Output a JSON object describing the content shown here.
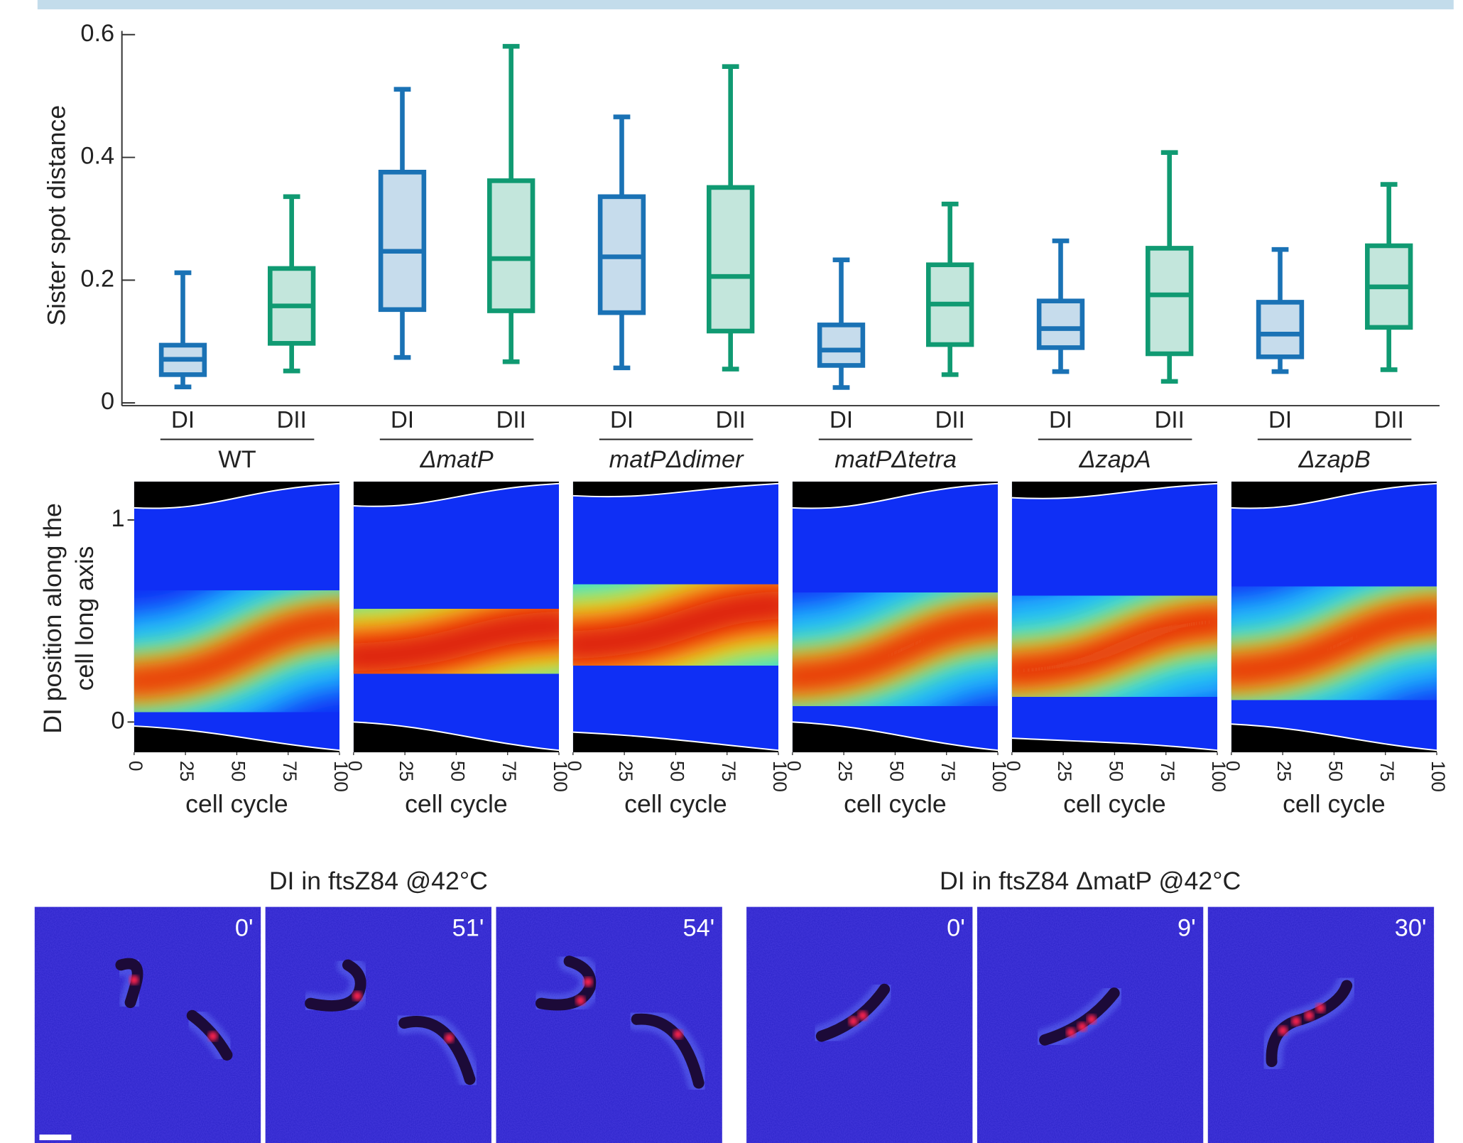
{
  "chart_data": [
    {
      "type": "box",
      "ylabel": "Sister spot distance",
      "categories": [
        "WT",
        "ΔmatP",
        "matPΔdimer",
        "matPΔtetra",
        "ΔzapA",
        "ΔzapB"
      ],
      "category_italic": [
        false,
        true,
        true,
        true,
        true,
        true
      ],
      "ylim": [
        0,
        0.6
      ],
      "yticks": [
        0,
        0.2,
        0.4,
        0.6
      ],
      "series": [
        {
          "name": "DI",
          "color": "#1a72b5",
          "min": [
            0.026,
            0.074,
            0.057,
            0.025,
            0.051,
            0.051
          ],
          "q1": [
            0.046,
            0.152,
            0.147,
            0.061,
            0.09,
            0.075
          ],
          "median": [
            0.071,
            0.247,
            0.238,
            0.086,
            0.121,
            0.112
          ],
          "q3": [
            0.094,
            0.376,
            0.336,
            0.127,
            0.166,
            0.164
          ],
          "max": [
            0.212,
            0.511,
            0.466,
            0.233,
            0.264,
            0.25
          ]
        },
        {
          "name": "DII",
          "color": "#109a72",
          "min": [
            0.052,
            0.067,
            0.055,
            0.046,
            0.035,
            0.054
          ],
          "q1": [
            0.097,
            0.15,
            0.117,
            0.095,
            0.08,
            0.123
          ],
          "median": [
            0.158,
            0.235,
            0.206,
            0.161,
            0.176,
            0.189
          ],
          "q3": [
            0.219,
            0.362,
            0.351,
            0.225,
            0.252,
            0.256
          ],
          "max": [
            0.336,
            0.581,
            0.548,
            0.324,
            0.408,
            0.356
          ]
        }
      ]
    },
    {
      "type": "heatmap",
      "ylabel_lines": [
        "DI position along the",
        "cell long axis"
      ],
      "xlabel": "cell cycle",
      "xlim": [
        0,
        100
      ],
      "xticks": [
        0,
        25,
        50,
        75,
        100
      ],
      "ylim": [
        -0.15,
        1.19
      ],
      "yticks": [
        0,
        1
      ]
    }
  ],
  "time_lapse": [
    {
      "title": "DI in ftsZ84 @42°C",
      "frames": [
        "0'",
        "51'",
        "54'"
      ]
    },
    {
      "title": "DI in ftsZ84 ΔmatP @42°C",
      "frames": [
        "0'",
        "9'",
        "30'"
      ]
    }
  ]
}
